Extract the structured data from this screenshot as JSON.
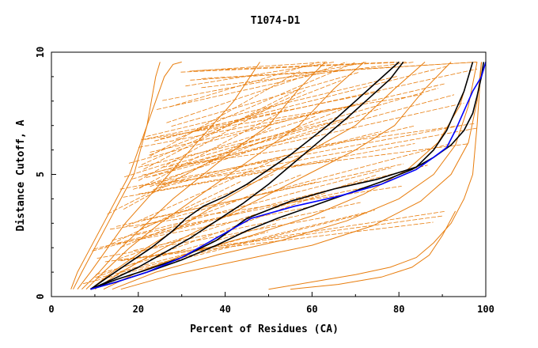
{
  "chart_data": {
    "type": "line",
    "title": "T1074-D1",
    "xlabel": "Percent of Residues (CA)",
    "ylabel": "Distance Cutoff, A",
    "xlim": [
      0,
      100
    ],
    "ylim": [
      0,
      10
    ],
    "xticks": [
      "0",
      "20",
      "40",
      "60",
      "80",
      "100"
    ],
    "yticks": [
      "0",
      "5",
      "10"
    ],
    "grid": false,
    "legend": "none",
    "colors": {
      "bundle": "#e87d0d",
      "highlight_black": "#000000",
      "highlight_blue": "#0000ff"
    },
    "bundle_description_series": [
      {
        "x": [
          4.5,
          6,
          9,
          12,
          15,
          18,
          20,
          22,
          24,
          26,
          28,
          30
        ],
        "y": [
          0.3,
          1,
          2,
          3,
          4,
          5,
          6,
          7,
          8,
          9,
          9.5,
          9.6
        ]
      },
      {
        "x": [
          5,
          7,
          10,
          13,
          16,
          19,
          22,
          24,
          25
        ],
        "y": [
          0.3,
          1,
          2,
          3,
          4,
          5,
          7,
          9,
          9.6
        ]
      },
      {
        "x": [
          6,
          9,
          13,
          17,
          22,
          27,
          32,
          37,
          42,
          48
        ],
        "y": [
          0.3,
          1,
          2,
          3,
          4,
          5,
          6,
          7,
          8,
          9.6
        ]
      },
      {
        "x": [
          7,
          11,
          16,
          22,
          28,
          35,
          42,
          50,
          57,
          63
        ],
        "y": [
          0.3,
          1,
          2,
          3,
          4,
          5,
          6,
          7,
          8.5,
          9.6
        ]
      },
      {
        "x": [
          8,
          12,
          18,
          25,
          33,
          41,
          49,
          57,
          65,
          72
        ],
        "y": [
          0.3,
          1,
          2,
          3,
          4,
          5,
          6,
          7,
          8.5,
          9.6
        ]
      },
      {
        "x": [
          9,
          14,
          22,
          31,
          40,
          50,
          60,
          70,
          79,
          86
        ],
        "y": [
          0.3,
          1,
          2,
          3,
          4,
          5,
          6,
          7,
          8.5,
          9.6
        ]
      },
      {
        "x": [
          10,
          16,
          26,
          37,
          48,
          59,
          70,
          79,
          86,
          92
        ],
        "y": [
          0.3,
          1,
          2,
          3,
          4,
          5,
          6,
          7,
          8.5,
          9.6
        ]
      },
      {
        "x": [
          12,
          20,
          32,
          46,
          60,
          72,
          82,
          89,
          94,
          97
        ],
        "y": [
          0.3,
          1,
          1.8,
          2.5,
          3.3,
          4.2,
          5.2,
          6.3,
          7.8,
          9.6
        ]
      },
      {
        "x": [
          14,
          24,
          38,
          53,
          68,
          80,
          88,
          93,
          96,
          98
        ],
        "y": [
          0.3,
          1,
          1.7,
          2.3,
          3.1,
          4,
          5,
          6.2,
          7.8,
          9.6
        ]
      },
      {
        "x": [
          16,
          28,
          44,
          60,
          74,
          85,
          92,
          96,
          98,
          99
        ],
        "y": [
          0.3,
          0.9,
          1.5,
          2.1,
          2.9,
          3.9,
          5,
          6.3,
          8,
          9.6
        ]
      },
      {
        "x": [
          50,
          60,
          70,
          78,
          84,
          88,
          92,
          95,
          97,
          98,
          99
        ],
        "y": [
          0.3,
          0.6,
          0.9,
          1.2,
          1.6,
          2.2,
          3,
          4,
          5,
          7,
          9.6
        ]
      },
      {
        "x": [
          55,
          66,
          76,
          83,
          87,
          90,
          93
        ],
        "y": [
          0.3,
          0.5,
          0.8,
          1.2,
          1.7,
          2.5,
          3.5
        ]
      }
    ],
    "series_black_1": {
      "x": [
        9,
        13,
        18,
        23,
        28,
        31,
        35,
        40,
        45,
        50,
        55,
        60,
        65,
        70,
        75,
        80
      ],
      "y": [
        0.3,
        0.8,
        1.4,
        2,
        2.7,
        3.2,
        3.7,
        4.1,
        4.6,
        5.2,
        5.8,
        6.5,
        7.2,
        8,
        8.8,
        9.6
      ]
    },
    "series_black_2": {
      "x": [
        9,
        14,
        20,
        26,
        32,
        38,
        44,
        50,
        56,
        62,
        68,
        73,
        78,
        81
      ],
      "y": [
        0.3,
        0.7,
        1.2,
        1.8,
        2.4,
        3.1,
        3.8,
        4.6,
        5.5,
        6.4,
        7.3,
        8.1,
        8.9,
        9.6
      ]
    },
    "series_black_3": {
      "x": [
        9,
        15,
        22,
        30,
        38,
        45,
        52,
        60,
        68,
        76,
        83,
        88,
        92,
        95,
        97,
        98,
        99,
        99.5
      ],
      "y": [
        0.3,
        0.6,
        1,
        1.5,
        2.1,
        2.7,
        3.2,
        3.7,
        4.2,
        4.7,
        5.2,
        5.7,
        6.2,
        6.8,
        7.5,
        8.2,
        9,
        9.6
      ]
    },
    "series_black_4": {
      "x": [
        9,
        15,
        22,
        30,
        38,
        45,
        55,
        65,
        75,
        84,
        88,
        91,
        93,
        95,
        96,
        97
      ],
      "y": [
        0.3,
        0.7,
        1.1,
        1.6,
        2.3,
        3.2,
        3.9,
        4.4,
        4.8,
        5.3,
        6,
        6.8,
        7.6,
        8.4,
        9,
        9.6
      ]
    },
    "series_blue": {
      "x": [
        9,
        15,
        22,
        30,
        38,
        46,
        56,
        66,
        76,
        84,
        88,
        91,
        93,
        95,
        97,
        99,
        100
      ],
      "y": [
        0.3,
        0.6,
        1,
        1.6,
        2.4,
        3.2,
        3.7,
        4.1,
        4.6,
        5.2,
        5.7,
        6.1,
        6.8,
        7.6,
        8.4,
        9,
        9.6
      ]
    }
  }
}
